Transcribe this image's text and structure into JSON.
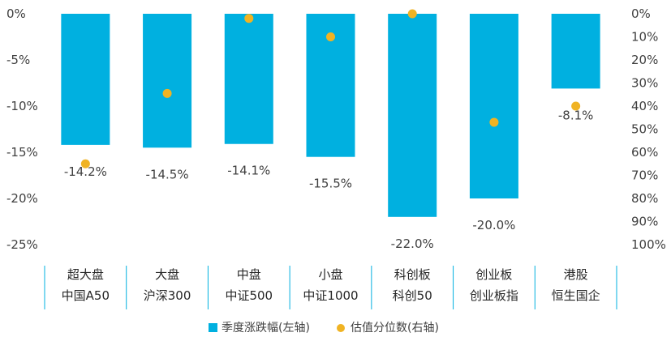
{
  "chart_data": {
    "type": "bar",
    "categories": [
      [
        "超大盘",
        "中国A50"
      ],
      [
        "大盘",
        "沪深300"
      ],
      [
        "中盘",
        "中证500"
      ],
      [
        "小盘",
        "中证1000"
      ],
      [
        "科创板",
        "科创50"
      ],
      [
        "创业板",
        "创业板指"
      ],
      [
        "港股",
        "恒生国企"
      ]
    ],
    "series": [
      {
        "name": "季度涨跌幅(左轴)",
        "kind": "bar",
        "axis": "left",
        "color": "#00B0E0",
        "values": [
          -14.2,
          -14.5,
          -14.1,
          -15.5,
          -22.0,
          -20.0,
          -8.1
        ],
        "labels": [
          "-14.2%",
          "-14.5%",
          "-14.1%",
          "-15.5%",
          "-22.0%",
          "-20.0%",
          "-8.1%"
        ]
      },
      {
        "name": "估值分位数(右轴)",
        "kind": "scatter",
        "axis": "right",
        "color": "#F0B323",
        "values": [
          65,
          34.5,
          2,
          10,
          0,
          47,
          40
        ]
      }
    ],
    "left_axis": {
      "ylim": [
        -25,
        0
      ],
      "ticks": [
        0,
        -5,
        -10,
        -15,
        -20,
        -25
      ],
      "tick_labels": [
        "0%",
        "-5%",
        "-10%",
        "-15%",
        "-20%",
        "-25%"
      ]
    },
    "right_axis": {
      "ylim": [
        0,
        100
      ],
      "inverted": true,
      "ticks": [
        0,
        10,
        20,
        30,
        40,
        50,
        60,
        70,
        80,
        90,
        100
      ],
      "tick_labels": [
        "0%",
        "10%",
        "20%",
        "30%",
        "40%",
        "50%",
        "60%",
        "70%",
        "80%",
        "90%",
        "100%"
      ]
    },
    "grid": false,
    "legend": "bottom"
  }
}
